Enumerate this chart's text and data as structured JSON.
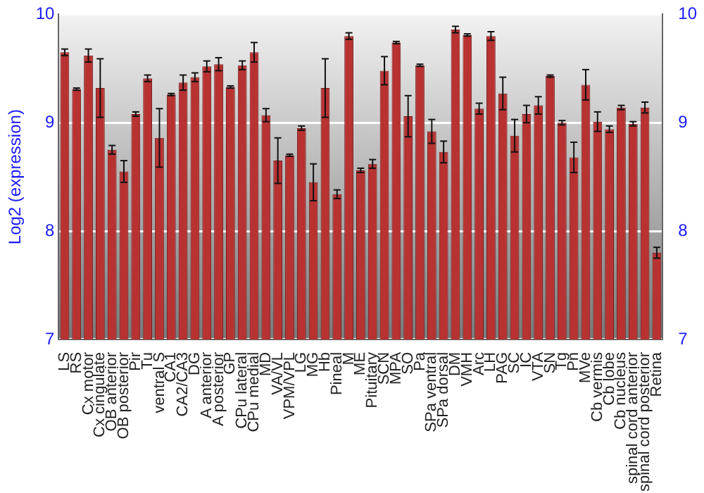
{
  "chart_data": {
    "type": "bar",
    "ylabel": "Log2 (expression)",
    "categories": [
      "LS",
      "RS",
      "Cx motor",
      "Cx cingulate",
      "OB anterior",
      "OB posterior",
      "Pir",
      "Tu",
      "ventral S",
      "CA1",
      "CA2/CA3",
      "DG",
      "A anterior",
      "A posterior",
      "GP",
      "CPu lateral",
      "CPu medial",
      "MD",
      "VA/VL",
      "VPM/VPL",
      "LG",
      "MG",
      "Hb",
      "Pineal",
      "M",
      "ME",
      "Pituitary",
      "SCN",
      "MPA",
      "SO",
      "Pa",
      "SPa ventral",
      "SPa dorsal",
      "DM",
      "VMH",
      "Arc",
      "LH",
      "PAG",
      "SC",
      "IC",
      "VTA",
      "SN",
      "Tg",
      "Pn",
      "MVe",
      "Cb vermis",
      "Cb lobe",
      "Cb nucleus",
      "spinal cord anterior",
      "spinal cord posterior",
      "Retina"
    ],
    "values": [
      9.65,
      9.31,
      9.62,
      9.32,
      8.75,
      8.55,
      9.08,
      9.41,
      8.86,
      9.26,
      9.37,
      9.42,
      9.52,
      9.54,
      9.33,
      9.53,
      9.65,
      9.07,
      8.65,
      8.7,
      8.95,
      8.45,
      9.32,
      8.34,
      9.8,
      8.56,
      8.62,
      9.48,
      9.74,
      9.06,
      9.53,
      8.92,
      8.73,
      9.86,
      9.81,
      9.13,
      9.8,
      9.27,
      8.88,
      9.08,
      9.16,
      9.43,
      9.0,
      8.68,
      9.35,
      9.01,
      8.94,
      9.14,
      8.99,
      9.14,
      7.8
    ],
    "errors": [
      0.03,
      0.01,
      0.06,
      0.27,
      0.04,
      0.1,
      0.02,
      0.03,
      0.27,
      0.01,
      0.07,
      0.04,
      0.05,
      0.06,
      0.01,
      0.04,
      0.09,
      0.06,
      0.21,
      0.01,
      0.02,
      0.17,
      0.27,
      0.04,
      0.03,
      0.02,
      0.04,
      0.13,
      0.01,
      0.19,
      0.01,
      0.11,
      0.1,
      0.03,
      0.01,
      0.05,
      0.04,
      0.15,
      0.15,
      0.08,
      0.08,
      0.01,
      0.02,
      0.14,
      0.14,
      0.09,
      0.03,
      0.02,
      0.02,
      0.05,
      0.05
    ],
    "color": "#b83232",
    "ylim": [
      7,
      10
    ],
    "yticks": [
      7,
      8,
      9,
      10
    ],
    "y2lim": [
      7,
      10
    ],
    "y2ticks": [
      7,
      8,
      9,
      10
    ],
    "grid": "y",
    "legend": false
  }
}
